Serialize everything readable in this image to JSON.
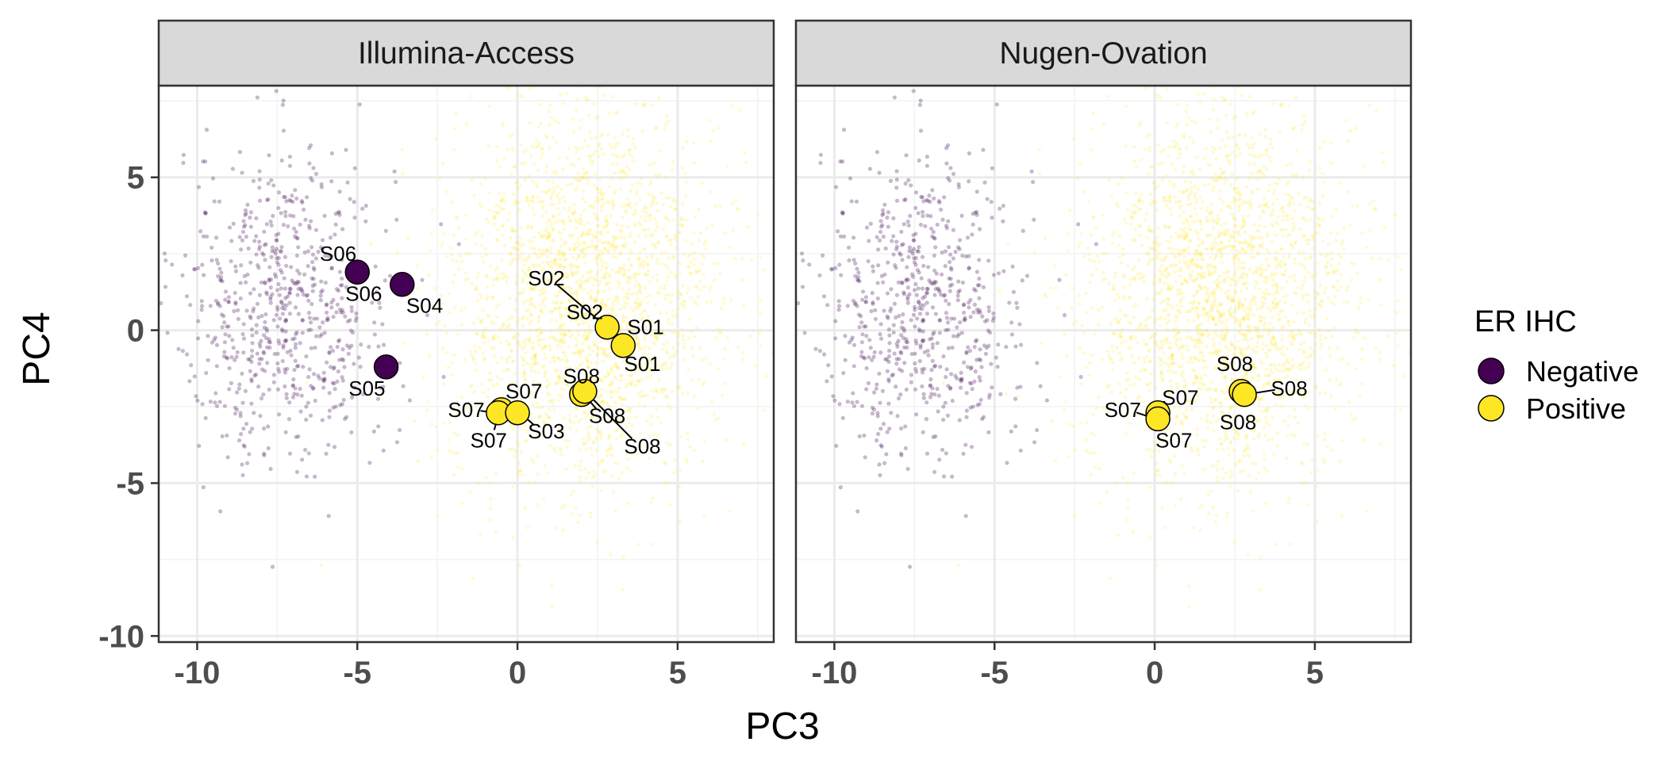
{
  "chart_data": {
    "type": "scatter",
    "xlabel": "PC3",
    "ylabel": "PC4",
    "xlim": [
      -11.2,
      8.0
    ],
    "ylim": [
      -10.2,
      8.0
    ],
    "x_ticks": [
      -10,
      -5,
      0,
      5
    ],
    "x_tick_labels": [
      "-10",
      "-5",
      "0",
      "5"
    ],
    "y_ticks": [
      -10,
      -5,
      0,
      5
    ],
    "y_tick_labels": [
      "-10",
      "-5",
      "0",
      "5"
    ],
    "grid": true,
    "legend": {
      "title": "ER IHC",
      "placement": "right",
      "entries": [
        {
          "label": "Negative",
          "color": "#440154"
        },
        {
          "label": "Positive",
          "color": "#fde725"
        }
      ]
    },
    "colors": {
      "Negative": "#440154",
      "Positive": "#fde725"
    },
    "background_groups": [
      {
        "group": "Negative",
        "x_mean": -7.3,
        "x_sd": 1.7,
        "y_mean": 0.8,
        "y_sd": 2.6,
        "count": 700
      },
      {
        "group": "Positive",
        "x_mean": 2.1,
        "x_sd": 2.1,
        "y_mean": 1.0,
        "y_sd": 3.1,
        "count": 2300
      }
    ],
    "panels": [
      {
        "title": "Illumina-Access",
        "points": [
          {
            "x": -5.0,
            "y": 1.9,
            "group": "Negative"
          },
          {
            "x": -3.6,
            "y": 1.5,
            "group": "Negative"
          },
          {
            "x": -4.1,
            "y": -1.2,
            "group": "Negative"
          },
          {
            "x": 2.8,
            "y": 0.1,
            "group": "Positive"
          },
          {
            "x": 3.3,
            "y": -0.5,
            "group": "Positive"
          },
          {
            "x": 2.0,
            "y": -2.1,
            "group": "Positive"
          },
          {
            "x": 2.1,
            "y": -2.0,
            "group": "Positive"
          },
          {
            "x": -0.5,
            "y": -2.6,
            "group": "Positive"
          },
          {
            "x": -0.6,
            "y": -2.7,
            "group": "Positive"
          },
          {
            "x": 0.0,
            "y": -2.7,
            "group": "Positive"
          }
        ],
        "labels": [
          {
            "text": "S06",
            "x": -5.6,
            "y": 2.5,
            "px": -5.0,
            "py": 1.9
          },
          {
            "text": "S06",
            "x": -4.8,
            "y": 1.2,
            "px": -5.0,
            "py": 1.9
          },
          {
            "text": "S04",
            "x": -2.9,
            "y": 0.8,
            "px": -3.6,
            "py": 1.5
          },
          {
            "text": "S05",
            "x": -4.7,
            "y": -1.9,
            "px": -4.1,
            "py": -1.2
          },
          {
            "text": "S02",
            "x": 0.9,
            "y": 1.7,
            "px": 2.8,
            "py": 0.1
          },
          {
            "text": "S02",
            "x": 2.1,
            "y": 0.6,
            "px": 2.8,
            "py": 0.1
          },
          {
            "text": "S01",
            "x": 4.0,
            "y": 0.1,
            "px": 3.3,
            "py": -0.5
          },
          {
            "text": "S01",
            "x": 3.9,
            "y": -1.1,
            "px": 3.3,
            "py": -0.5
          },
          {
            "text": "S08",
            "x": 2.0,
            "y": -1.5,
            "px": 2.0,
            "py": -2.1
          },
          {
            "text": "S08",
            "x": 2.8,
            "y": -2.8,
            "px": 2.0,
            "py": -2.1
          },
          {
            "text": "S08",
            "x": 3.9,
            "y": -3.8,
            "px": 2.1,
            "py": -2.0
          },
          {
            "text": "S07",
            "x": 0.2,
            "y": -2.0,
            "px": -0.5,
            "py": -2.6
          },
          {
            "text": "S07",
            "x": -1.6,
            "y": -2.6,
            "px": -0.6,
            "py": -2.7
          },
          {
            "text": "S07",
            "x": -0.9,
            "y": -3.6,
            "px": -0.5,
            "py": -2.6
          },
          {
            "text": "S03",
            "x": 0.9,
            "y": -3.3,
            "px": 0.0,
            "py": -2.7
          }
        ]
      },
      {
        "title": "Nugen-Ovation",
        "points": [
          {
            "x": 0.1,
            "y": -2.7,
            "group": "Positive"
          },
          {
            "x": 0.1,
            "y": -2.9,
            "group": "Positive"
          },
          {
            "x": 2.7,
            "y": -2.0,
            "group": "Positive"
          },
          {
            "x": 2.8,
            "y": -2.1,
            "group": "Positive"
          }
        ],
        "labels": [
          {
            "text": "S07",
            "x": 0.8,
            "y": -2.2,
            "px": 0.1,
            "py": -2.7
          },
          {
            "text": "S07",
            "x": -1.0,
            "y": -2.6,
            "px": 0.1,
            "py": -2.9
          },
          {
            "text": "S07",
            "x": 0.6,
            "y": -3.6,
            "px": 0.1,
            "py": -2.9
          },
          {
            "text": "S08",
            "x": 2.5,
            "y": -1.1,
            "px": 2.7,
            "py": -2.0
          },
          {
            "text": "S08",
            "x": 4.2,
            "y": -1.9,
            "px": 2.8,
            "py": -2.1
          },
          {
            "text": "S08",
            "x": 2.6,
            "y": -3.0,
            "px": 2.8,
            "py": -2.1
          }
        ]
      }
    ]
  }
}
